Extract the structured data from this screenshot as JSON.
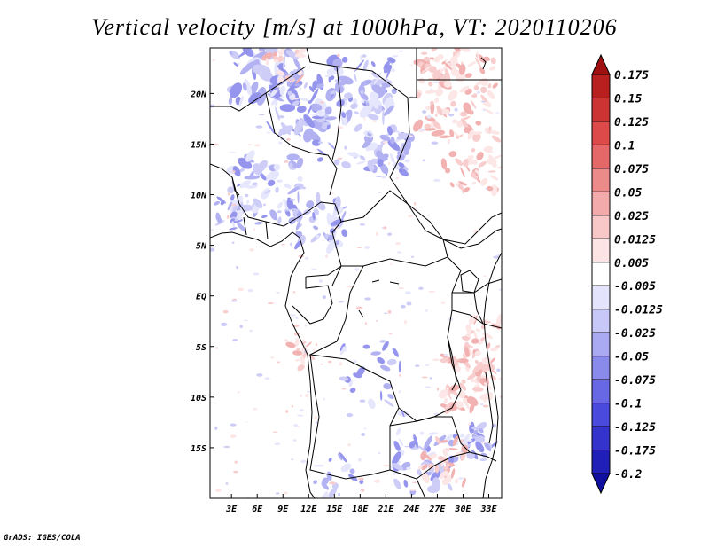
{
  "title": "Vertical velocity [m/s] at 1000hPa, VT: 2020110206",
  "credit": "GrADS: IGES/COLA",
  "map": {
    "lon_labels": [
      "3E",
      "6E",
      "9E",
      "12E",
      "15E",
      "18E",
      "21E",
      "24E",
      "27E",
      "30E",
      "33E"
    ],
    "lat_labels": [
      "20N",
      "15N",
      "10N",
      "5N",
      "EQ",
      "5S",
      "10S",
      "15S"
    ],
    "lon_range": [
      0.5,
      34.5
    ],
    "lat_range": [
      -20,
      24.5
    ]
  },
  "colorbar": {
    "labels": [
      "0.175",
      "0.15",
      "0.125",
      "0.1",
      "0.075",
      "0.05",
      "0.025",
      "0.0125",
      "0.005",
      "-0.005",
      "-0.0125",
      "-0.025",
      "-0.05",
      "-0.075",
      "-0.1",
      "-0.125",
      "-0.175",
      "-0.2"
    ],
    "colors": [
      "#a01010",
      "#b82020",
      "#cc3434",
      "#dc4a4a",
      "#e46868",
      "#ec8a8a",
      "#f2aaaa",
      "#f8c8c8",
      "#fce4e4",
      "#ffffff",
      "#e4e4fc",
      "#c8c8f8",
      "#aaaaf2",
      "#8a8aec",
      "#6868e4",
      "#4a4adc",
      "#3434cc",
      "#2020b8",
      "#1010a0"
    ]
  }
}
